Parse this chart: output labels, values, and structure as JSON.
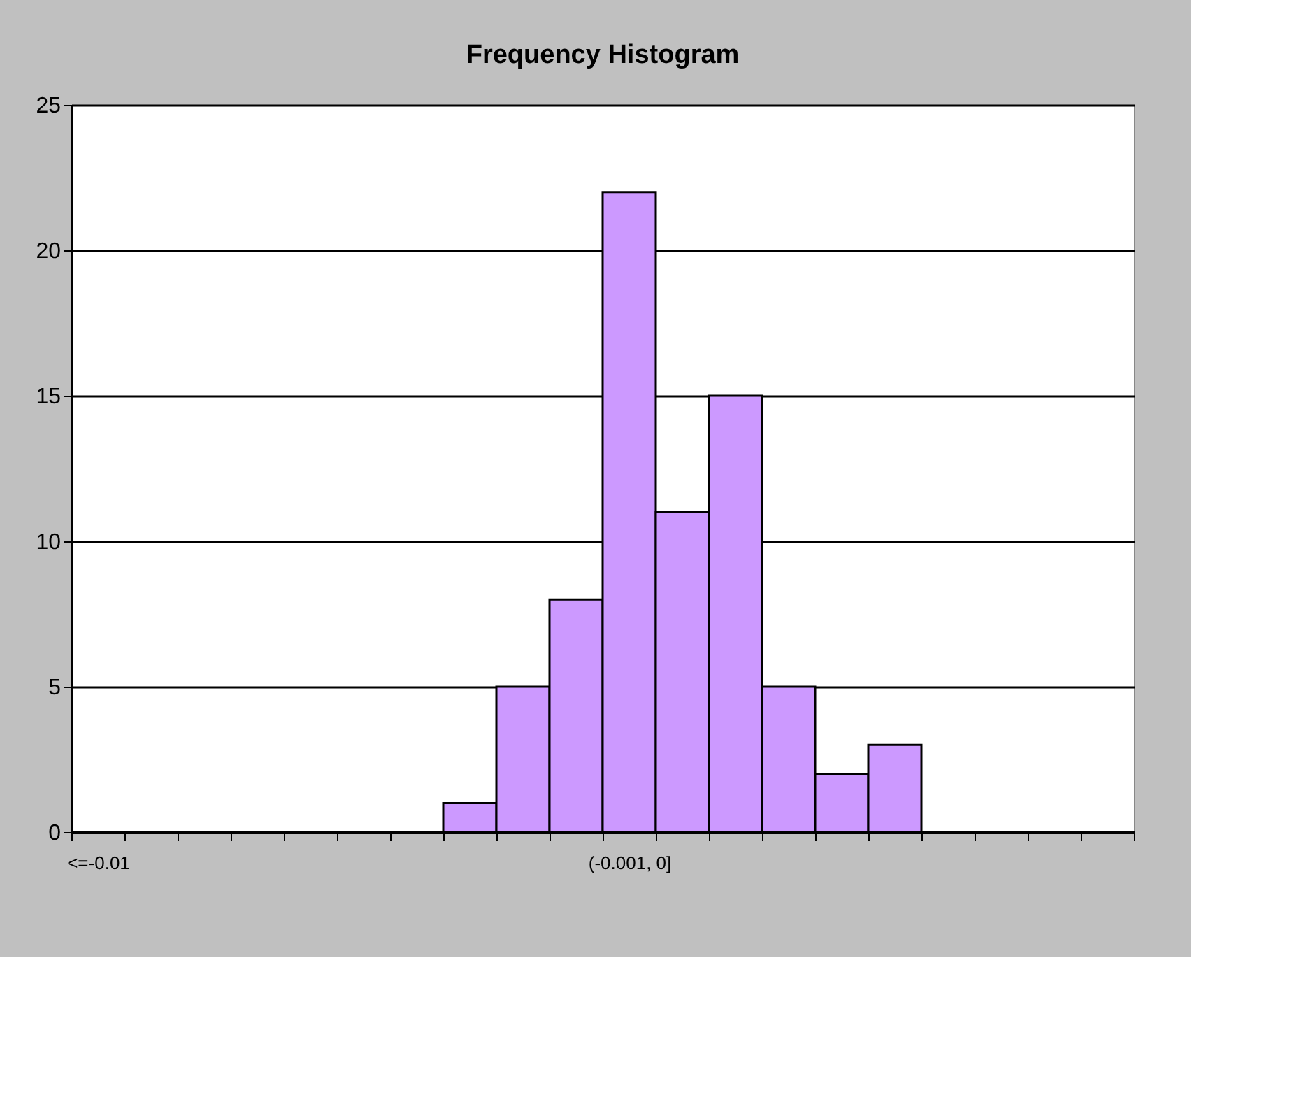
{
  "chart_data": {
    "type": "bar",
    "title": "Frequency Histogram",
    "categories": [
      "<=-0.01",
      null,
      null,
      null,
      null,
      null,
      null,
      null,
      null,
      null,
      "(-0.001, 0]",
      null,
      null,
      null,
      null,
      null,
      null,
      null,
      null,
      null
    ],
    "values": [
      0,
      0,
      0,
      0,
      0,
      0,
      0,
      1,
      5,
      8,
      22,
      11,
      15,
      5,
      2,
      3,
      0,
      0,
      0,
      0
    ],
    "color": "#cc99ff",
    "ylim": [
      0,
      25
    ],
    "yticks": [
      0,
      5,
      10,
      15,
      20,
      25
    ],
    "grid": "y"
  }
}
